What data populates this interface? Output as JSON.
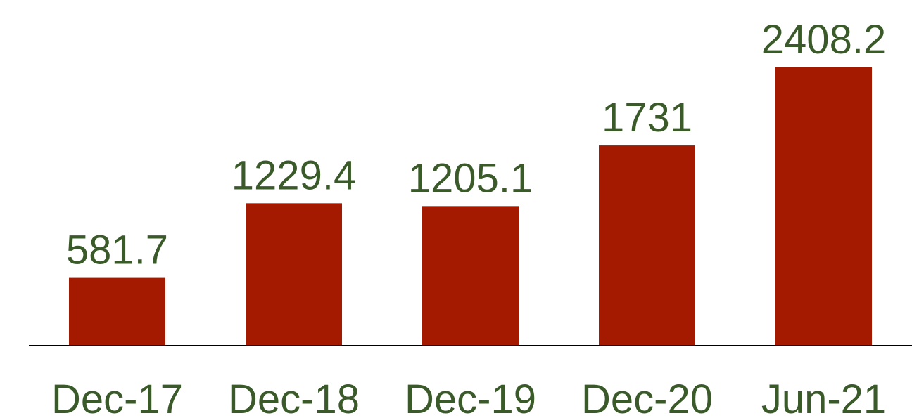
{
  "chart_data": {
    "type": "bar",
    "categories": [
      "Dec-17",
      "Dec-18",
      "Dec-19",
      "Dec-20",
      "Jun-21"
    ],
    "values": [
      581.7,
      1229.4,
      1205.1,
      1731,
      2408.2
    ],
    "color": "#a31a00"
  }
}
